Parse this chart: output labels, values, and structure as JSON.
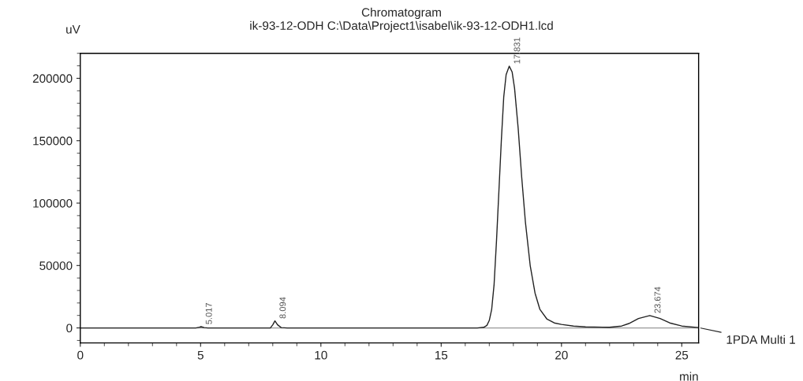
{
  "chart_data": {
    "type": "line",
    "title": "Chromatogram",
    "subtitle": "ik-93-12-ODH C:\\Data\\Project1\\isabel\\ik-93-12-ODH1.lcd",
    "xlabel": "min",
    "ylabel": "uV",
    "xlim": [
      0,
      25.7
    ],
    "xticks": [
      0,
      5,
      10,
      15,
      20,
      25
    ],
    "ylim": [
      -12000,
      220000
    ],
    "yticks": [
      0,
      50000,
      100000,
      150000,
      200000
    ],
    "grid": false,
    "legend": false,
    "marker": "none",
    "line_style": "solid",
    "ref_lines": [
      {
        "axis": "y",
        "value": 0,
        "color": "#999999"
      }
    ],
    "series": [
      {
        "name": "1PDA Multi 1",
        "color": "#222222",
        "x": [
          0,
          4.8,
          4.95,
          5.02,
          5.15,
          5.3,
          7.9,
          8.0,
          8.09,
          8.2,
          8.35,
          8.6,
          16.5,
          16.77,
          16.9,
          17.0,
          17.1,
          17.2,
          17.3,
          17.4,
          17.5,
          17.6,
          17.7,
          17.83,
          17.95,
          18.05,
          18.2,
          18.35,
          18.5,
          18.7,
          18.9,
          19.1,
          19.4,
          19.7,
          20.0,
          20.5,
          21,
          22,
          22.5,
          22.8,
          23.2,
          23.67,
          24.1,
          24.5,
          25.0,
          25.7
        ],
        "values": [
          0,
          0,
          600,
          1000,
          300,
          0,
          0,
          2500,
          5600,
          2500,
          300,
          0,
          0,
          500,
          2000,
          6000,
          15000,
          35000,
          70000,
          110000,
          150000,
          185000,
          203000,
          209700,
          205000,
          192000,
          160000,
          120000,
          85000,
          50000,
          28000,
          15000,
          7000,
          4000,
          2800,
          1500,
          800,
          500,
          1500,
          3500,
          7500,
          9900,
          7500,
          4000,
          1500,
          300
        ]
      }
    ],
    "annotations": [
      {
        "text": "5.017",
        "x": 5.02,
        "y": 1000
      },
      {
        "text": "8.094",
        "x": 8.09,
        "y": 5600
      },
      {
        "text": "17.831",
        "x": 17.83,
        "y": 209700
      },
      {
        "text": "23.674",
        "x": 23.67,
        "y": 9900
      }
    ]
  }
}
